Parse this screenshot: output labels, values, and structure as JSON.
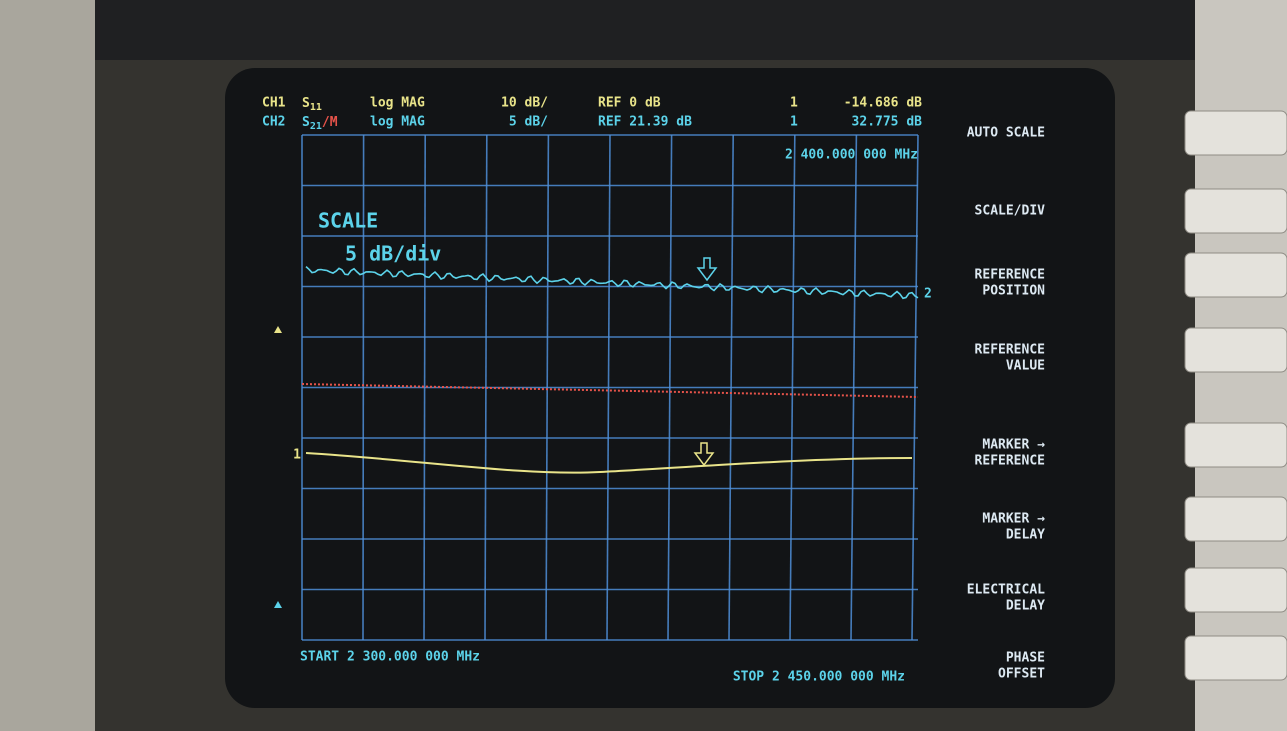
{
  "header": {
    "ch1": {
      "channel": "CH1",
      "param": "S",
      "param_sub": "11",
      "format": "log MAG",
      "scale": "10 dB/",
      "ref": "REF 0 dB",
      "marker": "1",
      "marker_value": "-14.686 dB"
    },
    "ch2": {
      "channel": "CH2",
      "param": "S",
      "param_sub": "21",
      "suffix": "/M",
      "format": "log MAG",
      "scale": "5 dB/",
      "ref": "REF 21.39 dB",
      "marker": "1",
      "marker_value": "32.775 dB"
    }
  },
  "marker_frequency": "2 400.000 000 MHz",
  "annotation": {
    "title": "SCALE",
    "value": "5 dB/div"
  },
  "trace_labels": {
    "ch1": "1",
    "ch2": "2"
  },
  "footer": {
    "start": "START 2 300.000 000 MHz",
    "stop": "STOP 2 450.000 000 MHz"
  },
  "softkeys": [
    [
      "AUTO SCALE"
    ],
    [
      "SCALE/DIV"
    ],
    [
      "REFERENCE",
      "POSITION"
    ],
    [
      "REFERENCE",
      "VALUE"
    ],
    [
      "MARKER →",
      "REFERENCE"
    ],
    [
      "MARKER →",
      "DELAY"
    ],
    [
      "ELECTRICAL",
      "DELAY"
    ],
    [
      "PHASE",
      "OFFSET"
    ]
  ]
}
